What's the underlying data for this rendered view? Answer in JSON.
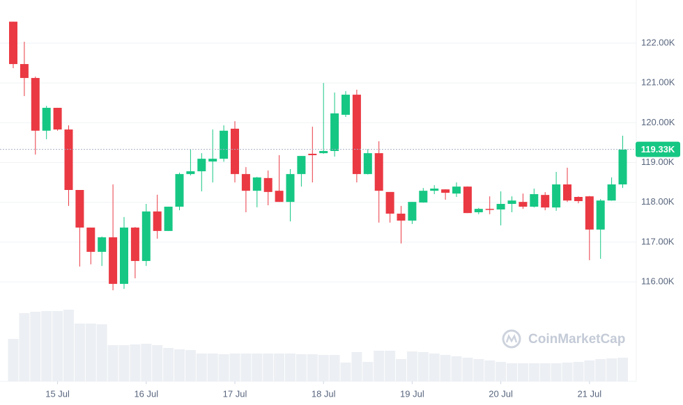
{
  "chart_data": {
    "type": "candlestick",
    "categories": [
      null,
      null,
      null,
      null,
      "15 Jul",
      null,
      null,
      null,
      null,
      null,
      null,
      null,
      "16 Jul",
      null,
      null,
      null,
      null,
      null,
      null,
      null,
      "17 Jul",
      null,
      null,
      null,
      null,
      null,
      null,
      null,
      "18 Jul",
      null,
      null,
      null,
      null,
      null,
      null,
      null,
      "19 Jul",
      null,
      null,
      null,
      null,
      null,
      null,
      null,
      "20 Jul",
      null,
      null,
      null,
      null,
      null,
      null,
      null,
      "21 Jul",
      null,
      null,
      null
    ],
    "open": [
      122540,
      121475,
      121125,
      119800,
      120375,
      119830,
      118310,
      117365,
      116755,
      117120,
      115950,
      117365,
      116525,
      117770,
      117280,
      117890,
      118710,
      118780,
      119025,
      119095,
      119850,
      118710,
      118290,
      118610,
      118290,
      118010,
      118710,
      119220,
      119235,
      119290,
      120200,
      120705,
      118710,
      119235,
      118260,
      117715,
      117540,
      117995,
      118290,
      118325,
      118220,
      118395,
      117750,
      117835,
      117820,
      117960,
      118010,
      117890,
      118185,
      117870,
      118450,
      118135,
      118150,
      117315,
      118045,
      118450
    ],
    "high": [
      122540,
      122035,
      121160,
      120425,
      120375,
      119935,
      118310,
      117365,
      117140,
      118450,
      117630,
      117380,
      117960,
      118190,
      117890,
      118745,
      119325,
      119235,
      119830,
      119935,
      120040,
      118885,
      118640,
      118800,
      119185,
      118835,
      119165,
      119900,
      121000,
      120760,
      120795,
      120830,
      119340,
      119535,
      118260,
      117910,
      118010,
      118360,
      118430,
      118330,
      118500,
      118400,
      117860,
      118150,
      118275,
      118150,
      118220,
      118345,
      118255,
      118765,
      118870,
      118150,
      118160,
      118080,
      118625,
      119675
    ],
    "low": [
      121370,
      120670,
      119200,
      119585,
      119800,
      117910,
      116385,
      116440,
      116400,
      115790,
      115825,
      116090,
      116400,
      117085,
      117280,
      117800,
      118675,
      118275,
      118500,
      119020,
      118500,
      117750,
      117875,
      117925,
      118010,
      117520,
      118395,
      118500,
      119220,
      119150,
      120145,
      118500,
      118700,
      117490,
      117490,
      116965,
      117455,
      117990,
      118205,
      118065,
      118135,
      117730,
      117700,
      117700,
      117420,
      117750,
      117835,
      117870,
      117800,
      117785,
      118010,
      117975,
      116545,
      116580,
      118040,
      118360
    ],
    "close": [
      121475,
      121125,
      119800,
      120375,
      119830,
      118310,
      117365,
      116755,
      117120,
      115950,
      117365,
      116525,
      117770,
      117280,
      117890,
      118710,
      118780,
      119095,
      119095,
      119800,
      118710,
      118290,
      118625,
      118260,
      118010,
      118710,
      119165,
      119185,
      119290,
      120235,
      120705,
      118710,
      119235,
      118290,
      117715,
      117540,
      118010,
      118290,
      118345,
      118240,
      118395,
      117730,
      117835,
      117820,
      117960,
      118045,
      117890,
      118205,
      117870,
      118450,
      118045,
      118030,
      117315,
      118045,
      118450,
      119325
    ],
    "volume": [
      61,
      98,
      100,
      101,
      101,
      103,
      83,
      83,
      82,
      52,
      52,
      53,
      54,
      52,
      48,
      46,
      45,
      40,
      40,
      39,
      40,
      40,
      40,
      40,
      40,
      40,
      39,
      39,
      38,
      38,
      27,
      42,
      28,
      44,
      44,
      32,
      43,
      42,
      40,
      38,
      36,
      34,
      32,
      30,
      28,
      26,
      26,
      26,
      26,
      26,
      27,
      28,
      30,
      32,
      33,
      34
    ],
    "up_color": "#16c784",
    "down_color": "#ea3943",
    "volume_color": "#eceff3",
    "ylim": [
      113500,
      123085
    ],
    "yticks": [
      {
        "value": 116000,
        "label": "116.00K"
      },
      {
        "value": 117000,
        "label": "117.00K"
      },
      {
        "value": 118000,
        "label": "118.00K"
      },
      {
        "value": 119000,
        "label": "119.00K"
      },
      {
        "value": 120000,
        "label": "120.00K"
      },
      {
        "value": 121000,
        "label": "121.00K"
      },
      {
        "value": 122000,
        "label": "122.00K"
      }
    ],
    "grid": true,
    "last_price": {
      "value": 119330,
      "label": "119.33K"
    },
    "watermark": "CoinMarketCap"
  }
}
